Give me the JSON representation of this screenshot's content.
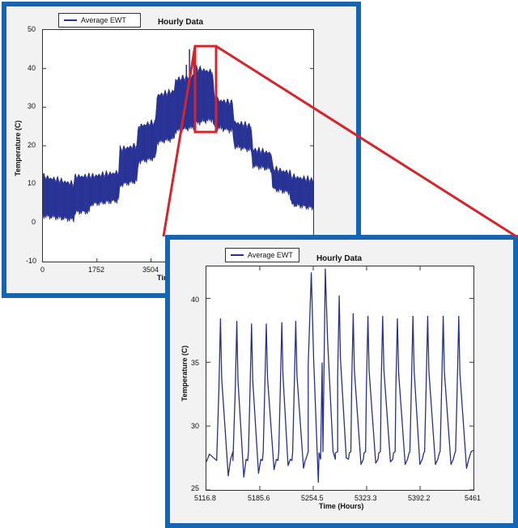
{
  "chart_data": [
    {
      "type": "area",
      "title": "Hourly Data",
      "legend": [
        "Average EWT"
      ],
      "legend_position": "top-left",
      "xlabel": "Time",
      "ylabel": "Temperature (C)",
      "xlim": [
        0,
        8760
      ],
      "ylim": [
        -10,
        50
      ],
      "xticks": [
        "0",
        "1752",
        "3504"
      ],
      "yticks": [
        "50",
        "40",
        "30",
        "20",
        "10",
        "0",
        "-10"
      ],
      "series": [
        {
          "name": "Average EWT",
          "x": [
            0,
            1000,
            1050,
            1500,
            1550,
            2450,
            2500,
            3050,
            3100,
            3650,
            3700,
            4250,
            4300,
            4900,
            4950,
            5500,
            5550,
            6150,
            6200,
            6750,
            6800,
            7400,
            7450,
            8000,
            8050,
            8760
          ],
          "min": [
            2,
            1,
            3,
            3,
            5,
            6,
            10,
            11,
            16,
            17,
            21,
            22,
            24,
            25,
            26,
            27,
            25,
            24,
            20,
            19,
            15,
            14,
            9,
            8,
            5,
            4
          ],
          "max": [
            12,
            10,
            12,
            12,
            12,
            13,
            19,
            20,
            25,
            26,
            33,
            34,
            37,
            38,
            40,
            39,
            32,
            31,
            26,
            25,
            19,
            18,
            14,
            13,
            12,
            11
          ],
          "peaks": [
            [
              4650,
              41
            ],
            [
              4750,
              45
            ],
            [
              4890,
              43
            ]
          ]
        }
      ],
      "zoom_region": {
        "x": [
          5116.8,
          5461
        ],
        "y": [
          23,
          45
        ]
      }
    },
    {
      "type": "line",
      "title": "Hourly Data",
      "legend": [
        "Average EWT"
      ],
      "legend_position": "top-left",
      "xlabel": "Time (Hours)",
      "ylabel": "Temperature (C)",
      "xlim": [
        5116.8,
        5461
      ],
      "ylim": [
        25,
        42.5
      ],
      "xticks": [
        "5116.8",
        "5185.6",
        "5254.5",
        "5323.3",
        "5392.2",
        "5461"
      ],
      "yticks": [
        "40",
        "35",
        "30",
        "25"
      ],
      "series": [
        {
          "name": "Average EWT",
          "peaks": [
            [
              5135,
              38.4
            ],
            [
              5156,
              38.2
            ],
            [
              5175,
              38
            ],
            [
              5194,
              38
            ],
            [
              5214,
              38.1
            ],
            [
              5232,
              38.2
            ],
            [
              5252,
              42
            ],
            [
              5270,
              42.3
            ],
            [
              5288,
              40.2
            ],
            [
              5306,
              38.8
            ],
            [
              5325,
              38.6
            ],
            [
              5344,
              38.6
            ],
            [
              5363,
              38.4
            ],
            [
              5383,
              38.6
            ],
            [
              5402,
              38.6
            ],
            [
              5422,
              38.6
            ],
            [
              5442,
              38.6
            ]
          ],
          "troughs": [
            [
              5145,
              26.1
            ],
            [
              5165,
              26
            ],
            [
              5184,
              26.3
            ],
            [
              5204,
              26.6
            ],
            [
              5222,
              26.9
            ],
            [
              5242,
              26.7
            ],
            [
              5261,
              25.6
            ],
            [
              5280,
              28
            ],
            [
              5297,
              27.5
            ],
            [
              5316,
              27
            ],
            [
              5335,
              27.1
            ],
            [
              5354,
              27.2
            ],
            [
              5373,
              27
            ],
            [
              5392,
              27
            ],
            [
              5412,
              27
            ],
            [
              5432,
              27
            ],
            [
              5452,
              26.7
            ]
          ],
          "baseline": 27.6
        }
      ]
    }
  ]
}
